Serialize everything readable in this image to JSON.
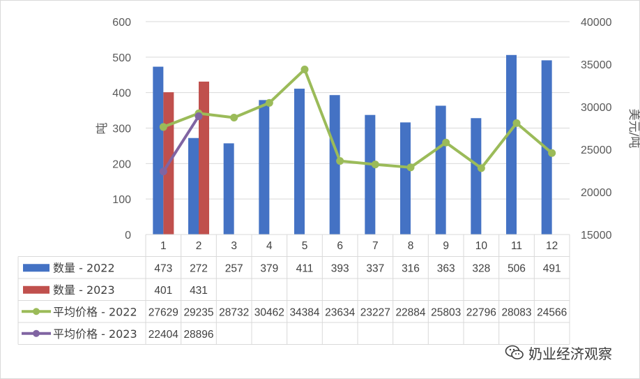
{
  "chart_data": {
    "type": "bar",
    "categories": [
      "1",
      "2",
      "3",
      "4",
      "5",
      "6",
      "7",
      "8",
      "9",
      "10",
      "11",
      "12"
    ],
    "series": [
      {
        "name": "数量 - 2022",
        "kind": "bar",
        "axis": "left",
        "color": "#4472C4",
        "values": [
          473,
          272,
          257,
          379,
          411,
          393,
          337,
          316,
          363,
          328,
          506,
          491
        ]
      },
      {
        "name": "数量 - 2023",
        "kind": "bar",
        "axis": "left",
        "color": "#C0504D",
        "values": [
          401,
          431,
          null,
          null,
          null,
          null,
          null,
          null,
          null,
          null,
          null,
          null
        ]
      },
      {
        "name": "平均价格 - 2022",
        "kind": "line",
        "axis": "right",
        "color": "#9BBB59",
        "values": [
          27629,
          29235,
          28732,
          30462,
          34384,
          23634,
          23227,
          22884,
          25803,
          22796,
          28083,
          24566
        ]
      },
      {
        "name": "平均价格 - 2023",
        "kind": "line",
        "axis": "right",
        "color": "#8064A2",
        "values": [
          22404,
          28896,
          null,
          null,
          null,
          null,
          null,
          null,
          null,
          null,
          null,
          null
        ]
      }
    ],
    "ylabel": "吨",
    "y2label": "美元/吨",
    "ylim": [
      0,
      600
    ],
    "y2lim": [
      15000,
      40000
    ],
    "yticks": [
      0,
      100,
      200,
      300,
      400,
      500,
      600
    ],
    "y2ticks": [
      15000,
      20000,
      25000,
      30000,
      35000,
      40000
    ],
    "grid": true,
    "legend": "data-table"
  },
  "watermark": "奶业经济观察"
}
